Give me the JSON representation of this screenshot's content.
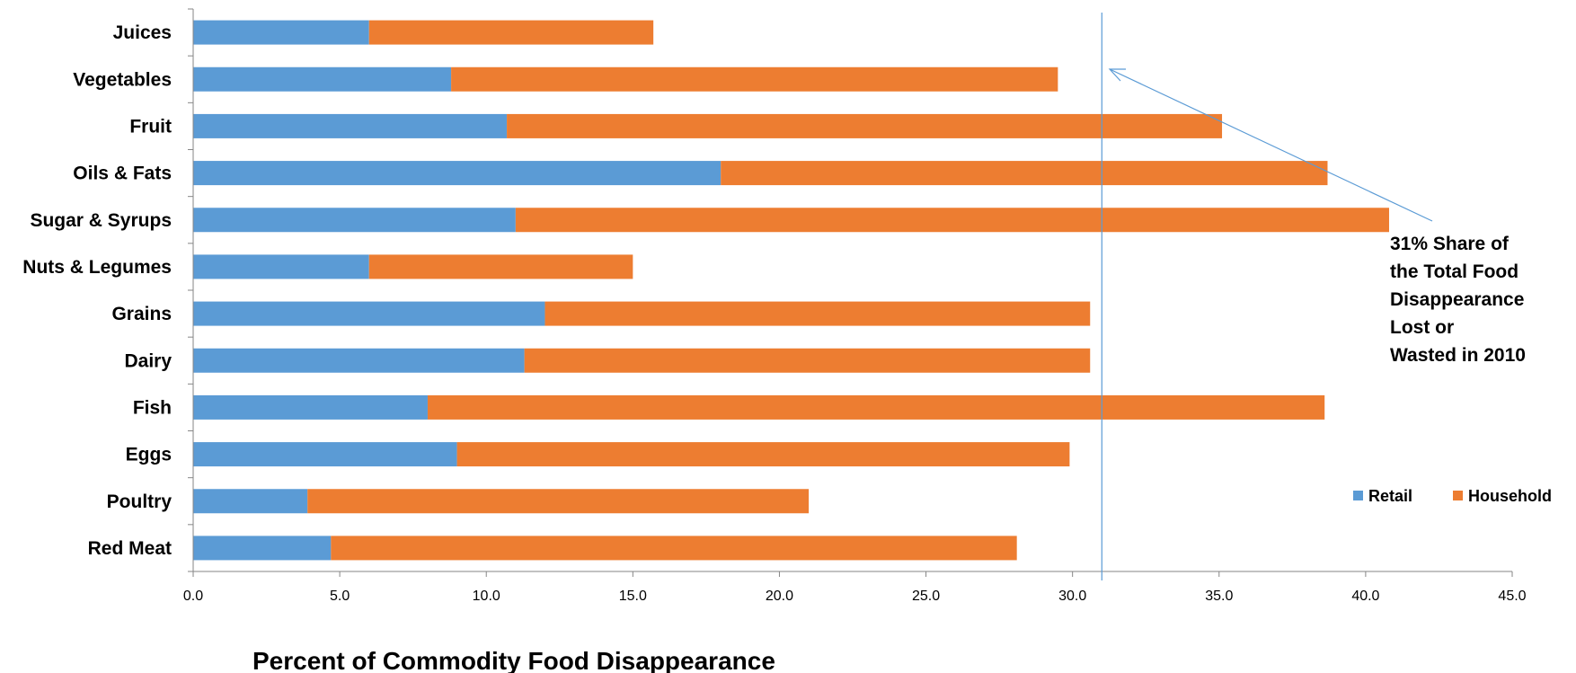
{
  "chart_data": {
    "type": "bar",
    "orientation": "horizontal",
    "stacked": true,
    "categories": [
      "Juices",
      "Vegetables",
      "Fruit",
      "Oils & Fats",
      "Sugar & Syrups",
      "Nuts & Legumes",
      "Grains",
      "Dairy",
      "Fish",
      "Eggs",
      "Poultry",
      "Red Meat"
    ],
    "series": [
      {
        "name": "Retail",
        "color": "#5b9bd5",
        "values": [
          6.0,
          8.8,
          10.7,
          18.0,
          11.0,
          6.0,
          12.0,
          11.3,
          8.0,
          9.0,
          3.9,
          4.7
        ]
      },
      {
        "name": "Household",
        "color": "#ed7d31",
        "values": [
          9.7,
          20.7,
          24.4,
          20.7,
          29.8,
          9.0,
          18.6,
          19.3,
          30.6,
          20.9,
          17.1,
          23.4
        ]
      }
    ],
    "xlim": [
      0,
      45
    ],
    "x_ticks": [
      "0.0",
      "5.0",
      "10.0",
      "15.0",
      "20.0",
      "25.0",
      "30.0",
      "35.0",
      "40.0",
      "45.0"
    ],
    "xlabel": "Percent of Commodity Food Disappearance",
    "ylabel": "",
    "title": "",
    "reference_line": {
      "x": 31,
      "color": "#5b9bd5"
    },
    "annotation": {
      "lines": [
        "31% Share of",
        "the Total Food",
        "Disappearance",
        "Lost or",
        "Wasted in 2010"
      ]
    },
    "legend": {
      "position": "right",
      "entries": [
        "Retail",
        "Household"
      ]
    },
    "grid": false
  }
}
